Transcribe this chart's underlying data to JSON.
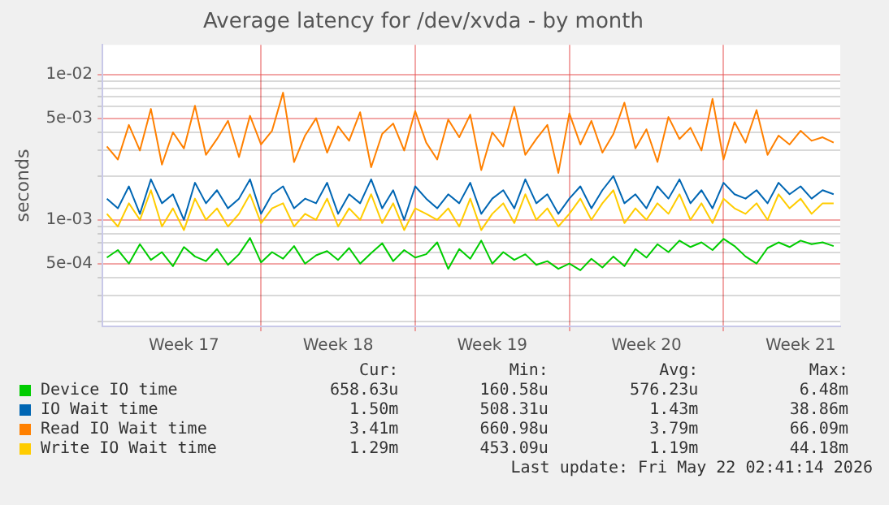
{
  "chart_data": {
    "type": "line",
    "title": "Average latency for /dev/xvda - by month",
    "ylabel": "seconds",
    "log": "y",
    "grid": true,
    "legend": "bottom",
    "marker": "none",
    "line_style": "solid",
    "x": [
      "2026-04-20T00:00",
      "2026-04-20T12:00",
      "2026-04-21T00:00",
      "2026-04-21T12:00",
      "2026-04-22T00:00",
      "2026-04-22T12:00",
      "2026-04-23T00:00",
      "2026-04-23T12:00",
      "2026-04-24T00:00",
      "2026-04-24T12:00",
      "2026-04-25T00:00",
      "2026-04-25T12:00",
      "2026-04-26T00:00",
      "2026-04-26T12:00",
      "2026-04-27T00:00",
      "2026-04-27T12:00",
      "2026-04-28T00:00",
      "2026-04-28T12:00",
      "2026-04-29T00:00",
      "2026-04-29T12:00",
      "2026-04-30T00:00",
      "2026-04-30T12:00",
      "2026-05-01T00:00",
      "2026-05-01T12:00",
      "2026-05-02T00:00",
      "2026-05-02T12:00",
      "2026-05-03T00:00",
      "2026-05-03T12:00",
      "2026-05-04T00:00",
      "2026-05-04T12:00",
      "2026-05-05T00:00",
      "2026-05-05T12:00",
      "2026-05-06T00:00",
      "2026-05-06T12:00",
      "2026-05-07T00:00",
      "2026-05-07T12:00",
      "2026-05-08T00:00",
      "2026-05-08T12:00",
      "2026-05-09T00:00",
      "2026-05-09T12:00",
      "2026-05-10T00:00",
      "2026-05-10T12:00",
      "2026-05-11T00:00",
      "2026-05-11T12:00",
      "2026-05-12T00:00",
      "2026-05-12T12:00",
      "2026-05-13T00:00",
      "2026-05-13T12:00",
      "2026-05-14T00:00",
      "2026-05-14T12:00",
      "2026-05-15T00:00",
      "2026-05-15T12:00",
      "2026-05-16T00:00",
      "2026-05-16T12:00",
      "2026-05-17T00:00",
      "2026-05-17T12:00",
      "2026-05-18T00:00",
      "2026-05-18T12:00",
      "2026-05-19T00:00",
      "2026-05-19T12:00",
      "2026-05-20T00:00",
      "2026-05-20T12:00",
      "2026-05-21T00:00",
      "2026-05-21T12:00",
      "2026-05-22T00:00",
      "2026-05-22T12:00",
      "2026-05-23T00:00"
    ],
    "xlim": [
      "2026-04-19T19:12",
      "2026-05-23T07:12"
    ],
    "xticks": [
      {
        "value": "2026-04-23T12:00",
        "label": "Week 17"
      },
      {
        "value": "2026-04-27T00:00",
        "label": null
      },
      {
        "value": "2026-04-30T12:00",
        "label": "Week 18"
      },
      {
        "value": "2026-05-04T00:00",
        "label": null
      },
      {
        "value": "2026-05-07T12:00",
        "label": "Week 19"
      },
      {
        "value": "2026-05-11T00:00",
        "label": null
      },
      {
        "value": "2026-05-14T12:00",
        "label": "Week 20"
      },
      {
        "value": "2026-05-18T00:00",
        "label": null
      },
      {
        "value": "2026-05-21T12:00",
        "label": "Week 21"
      }
    ],
    "ylim": [
      0.000185,
      0.016
    ],
    "yticks": [
      {
        "value": 0.0002,
        "label": null
      },
      {
        "value": 0.0003,
        "label": null
      },
      {
        "value": 0.0004,
        "label": null
      },
      {
        "value": 0.0005,
        "label": "5e-04"
      },
      {
        "value": 0.0006,
        "label": null
      },
      {
        "value": 0.0007,
        "label": null
      },
      {
        "value": 0.0008,
        "label": null
      },
      {
        "value": 0.0009,
        "label": null
      },
      {
        "value": 0.001,
        "label": "1e-03"
      },
      {
        "value": 0.002,
        "label": null
      },
      {
        "value": 0.003,
        "label": null
      },
      {
        "value": 0.004,
        "label": null
      },
      {
        "value": 0.005,
        "label": "5e-03"
      },
      {
        "value": 0.006,
        "label": null
      },
      {
        "value": 0.007,
        "label": null
      },
      {
        "value": 0.008,
        "label": null
      },
      {
        "value": 0.009,
        "label": null
      },
      {
        "value": 0.01,
        "label": "1e-02"
      }
    ],
    "series": [
      {
        "name": "Device IO time",
        "color": "#00cc00",
        "values": [
          0.00055,
          0.00062,
          0.0005,
          0.00068,
          0.00053,
          0.0006,
          0.00048,
          0.00065,
          0.00056,
          0.00052,
          0.00063,
          0.00049,
          0.00058,
          0.00075,
          0.00051,
          0.0006,
          0.00054,
          0.00066,
          0.0005,
          0.00057,
          0.00061,
          0.00053,
          0.00064,
          0.0005,
          0.00059,
          0.00069,
          0.00052,
          0.00062,
          0.00055,
          0.00058,
          0.0007,
          0.00046,
          0.00063,
          0.00054,
          0.00072,
          0.0005,
          0.0006,
          0.00053,
          0.00058,
          0.00049,
          0.00052,
          0.00046,
          0.0005,
          0.00045,
          0.00054,
          0.00047,
          0.00056,
          0.00048,
          0.00063,
          0.00055,
          0.00068,
          0.0006,
          0.00072,
          0.00065,
          0.0007,
          0.00062,
          0.00074,
          0.00066,
          0.00056,
          0.0005,
          0.00064,
          0.0007,
          0.00065,
          0.00072,
          0.00068,
          0.0007,
          0.00066
        ]
      },
      {
        "name": "IO Wait time",
        "color": "#0066b3",
        "values": [
          0.0014,
          0.0012,
          0.0017,
          0.0011,
          0.0019,
          0.0013,
          0.0015,
          0.001,
          0.0018,
          0.0013,
          0.0016,
          0.0012,
          0.0014,
          0.0019,
          0.0011,
          0.0015,
          0.0017,
          0.0012,
          0.0014,
          0.0013,
          0.0018,
          0.0011,
          0.0015,
          0.0013,
          0.0019,
          0.0012,
          0.0016,
          0.001,
          0.0017,
          0.0014,
          0.0012,
          0.0015,
          0.0013,
          0.0018,
          0.0011,
          0.0014,
          0.0016,
          0.0012,
          0.0019,
          0.0013,
          0.0015,
          0.0011,
          0.0014,
          0.0017,
          0.0012,
          0.0016,
          0.002,
          0.0013,
          0.0015,
          0.0012,
          0.0017,
          0.0014,
          0.0019,
          0.0013,
          0.0016,
          0.0012,
          0.0018,
          0.0015,
          0.0014,
          0.0016,
          0.0013,
          0.0018,
          0.0015,
          0.0017,
          0.0014,
          0.0016,
          0.0015
        ]
      },
      {
        "name": "Read IO Wait time",
        "color": "#ff8000",
        "values": [
          0.0032,
          0.0026,
          0.0045,
          0.003,
          0.0058,
          0.0024,
          0.004,
          0.0031,
          0.0061,
          0.0028,
          0.0036,
          0.0048,
          0.0027,
          0.0052,
          0.0033,
          0.0041,
          0.0075,
          0.0025,
          0.0038,
          0.005,
          0.0029,
          0.0044,
          0.0035,
          0.0055,
          0.0023,
          0.0039,
          0.0046,
          0.003,
          0.0056,
          0.0034,
          0.0026,
          0.0049,
          0.0037,
          0.0053,
          0.0022,
          0.004,
          0.0032,
          0.006,
          0.0028,
          0.0036,
          0.0045,
          0.0021,
          0.0054,
          0.0033,
          0.0048,
          0.0029,
          0.0039,
          0.0064,
          0.0031,
          0.0042,
          0.0025,
          0.0051,
          0.0036,
          0.0043,
          0.003,
          0.0068,
          0.0026,
          0.0047,
          0.0034,
          0.0057,
          0.0028,
          0.0038,
          0.0033,
          0.0041,
          0.0035,
          0.0037,
          0.0034
        ]
      },
      {
        "name": "Write IO Wait time",
        "color": "#ffcc00",
        "values": [
          0.0011,
          0.0009,
          0.0013,
          0.001,
          0.0016,
          0.0009,
          0.0012,
          0.00085,
          0.0014,
          0.001,
          0.0012,
          0.0009,
          0.0011,
          0.0015,
          0.00095,
          0.0012,
          0.0013,
          0.0009,
          0.0011,
          0.001,
          0.0014,
          0.0009,
          0.0012,
          0.001,
          0.0015,
          0.00095,
          0.0013,
          0.00085,
          0.0012,
          0.0011,
          0.001,
          0.0012,
          0.0009,
          0.0014,
          0.00085,
          0.0011,
          0.0013,
          0.00095,
          0.0015,
          0.001,
          0.0012,
          0.0009,
          0.0011,
          0.0014,
          0.001,
          0.0013,
          0.0016,
          0.00095,
          0.0012,
          0.001,
          0.0013,
          0.0011,
          0.0015,
          0.001,
          0.0013,
          0.00095,
          0.0014,
          0.0012,
          0.0011,
          0.0013,
          0.001,
          0.0015,
          0.0012,
          0.0014,
          0.0011,
          0.0013,
          0.0013
        ]
      }
    ],
    "annotations": [
      "Cur:",
      "Min:",
      "Avg:",
      "Max:",
      "658.63u",
      "160.58u",
      "576.23u",
      "6.48m",
      "1.50m",
      "508.31u",
      "1.43m",
      "38.86m",
      "3.41m",
      "660.98u",
      "3.79m",
      "66.09m",
      "1.29m",
      "453.09u",
      "1.19m",
      "44.18m",
      "Last update: Fri May 22 02:41:14 2026"
    ]
  }
}
